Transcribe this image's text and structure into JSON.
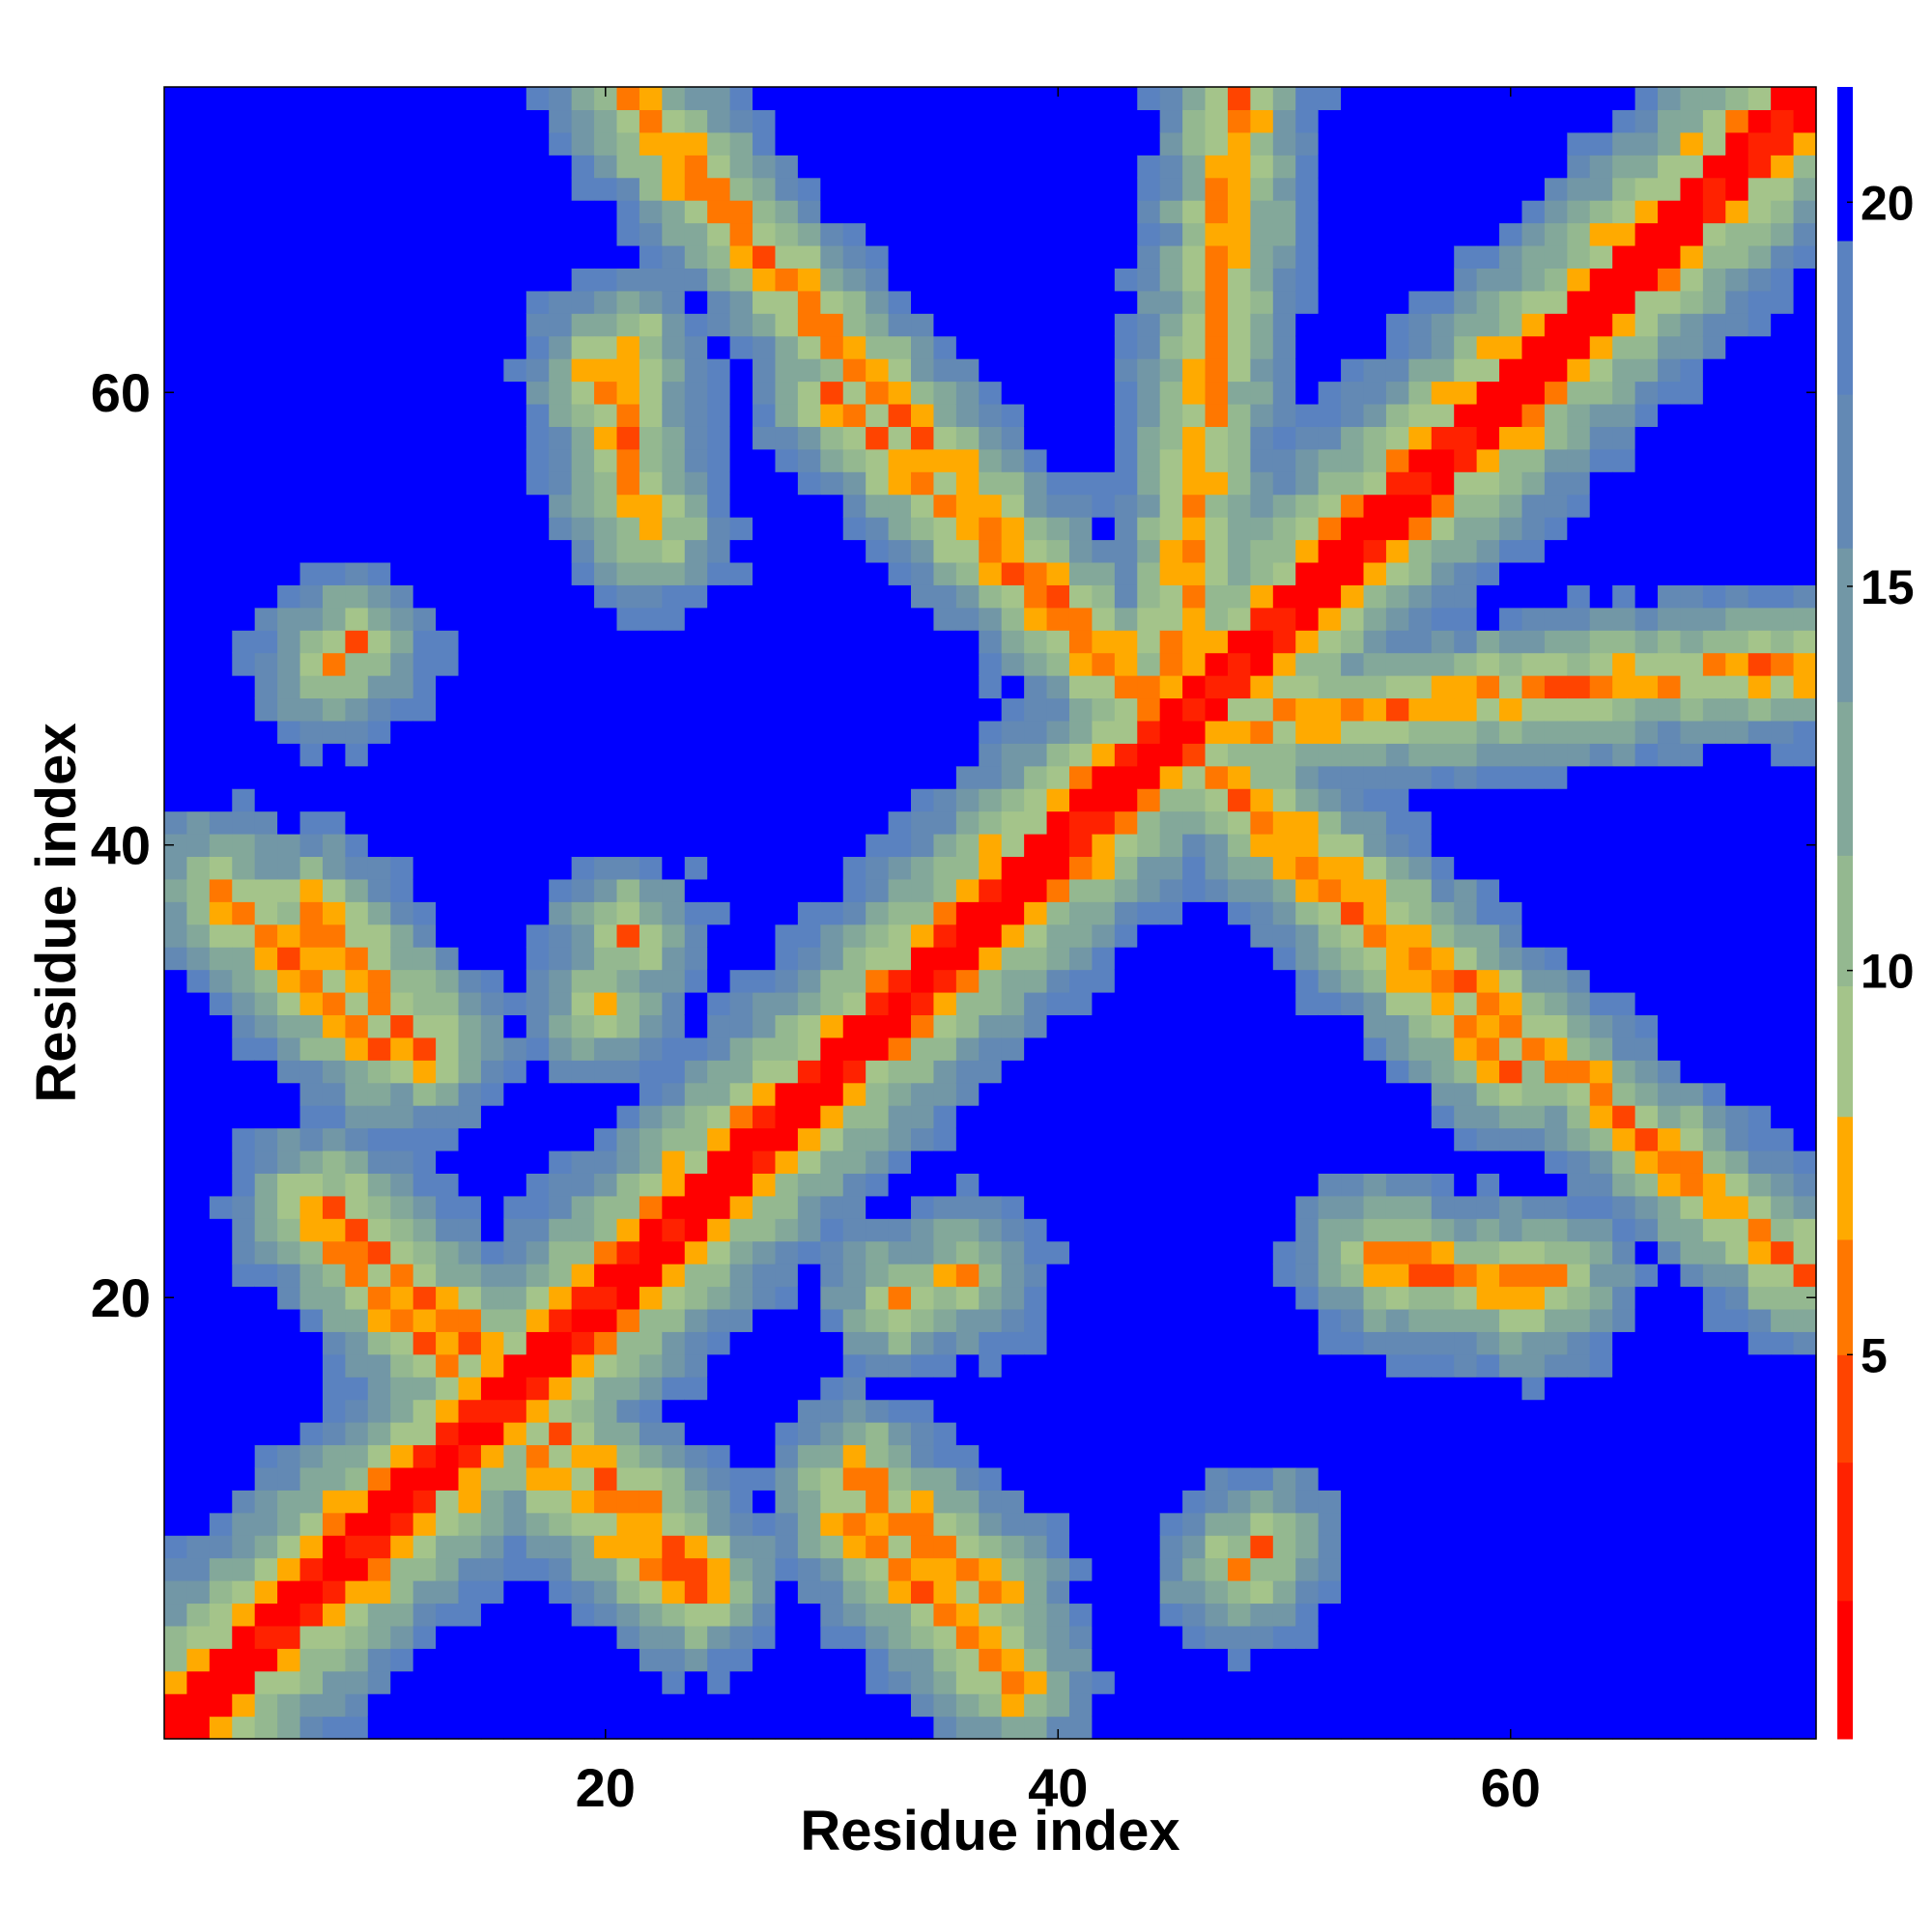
{
  "chart_data": {
    "type": "heatmap",
    "title": "",
    "xlabel": "Residue index",
    "ylabel": "Residue index",
    "n_residues": 73,
    "xlim": [
      0.5,
      73.5
    ],
    "ylim": [
      0.5,
      73.5
    ],
    "x_ticks": [
      20,
      40,
      60
    ],
    "y_ticks": [
      20,
      40,
      60
    ],
    "colorbar": {
      "range": [
        0,
        21.5
      ],
      "ticks": [
        5,
        10,
        15,
        20
      ],
      "position": "right",
      "bins": [
        {
          "upper": 1.8,
          "color": "#ff0000"
        },
        {
          "upper": 3.6,
          "color": "#ff2200"
        },
        {
          "upper": 5.0,
          "color": "#ff4400"
        },
        {
          "upper": 6.5,
          "color": "#ff7700"
        },
        {
          "upper": 8.1,
          "color": "#ffaa00"
        },
        {
          "upper": 9.8,
          "color": "#a4c48a"
        },
        {
          "upper": 11.5,
          "color": "#94b890"
        },
        {
          "upper": 13.5,
          "color": "#83a89a"
        },
        {
          "upper": 15.5,
          "color": "#7297a6"
        },
        {
          "upper": 17.5,
          "color": "#6389b4"
        },
        {
          "upper": 19.5,
          "color": "#5a82c0"
        },
        {
          "upper": 21.5,
          "color": "#0000ff"
        }
      ]
    },
    "value_model": {
      "description_free_parameters": true,
      "diagonal_half_width": 1.6,
      "background_cap": 21.5,
      "helix_cross_arms": [
        {
          "i0": 45,
          "j0": 45,
          "i_end": 73,
          "j_end": 21,
          "d0": 5.6
        },
        {
          "i0": 45,
          "j0": 45,
          "i_end": 30,
          "j_end": 60,
          "d0": 5.6
        },
        {
          "i0": 45,
          "j0": 45,
          "i_end": 48,
          "j_end": 73,
          "d0": 5.6
        }
      ],
      "side_contacts": [
        {
          "i": 7,
          "j": 37,
          "i2": 12,
          "j2": 31,
          "d0": 5.4
        },
        {
          "i": 8,
          "j": 24,
          "i2": 14,
          "j2": 18,
          "d0": 5.6
        },
        {
          "i": 17,
          "j": 13,
          "i2": 24,
          "j2": 7,
          "d0": 5.6
        },
        {
          "i": 31,
          "j": 10,
          "i2": 38,
          "j2": 3,
          "d0": 5.6
        },
        {
          "i": 20,
          "j": 61,
          "i2": 22,
          "j2": 54,
          "d0": 5.8
        },
        {
          "i": 55,
          "j": 21,
          "i2": 62,
          "j2": 21,
          "d0": 6.0
        },
        {
          "i": 9,
          "j": 49,
          "i2": 9,
          "j2": 49,
          "d0": 6.2
        },
        {
          "i": 48,
          "j": 8,
          "i2": 48,
          "j2": 8,
          "d0": 6.2
        },
        {
          "i": 36,
          "j": 21,
          "i2": 36,
          "j2": 21,
          "d0": 6.2
        },
        {
          "i": 33,
          "j": 20,
          "i2": 33,
          "j2": 20,
          "d0": 6.2
        }
      ]
    }
  }
}
